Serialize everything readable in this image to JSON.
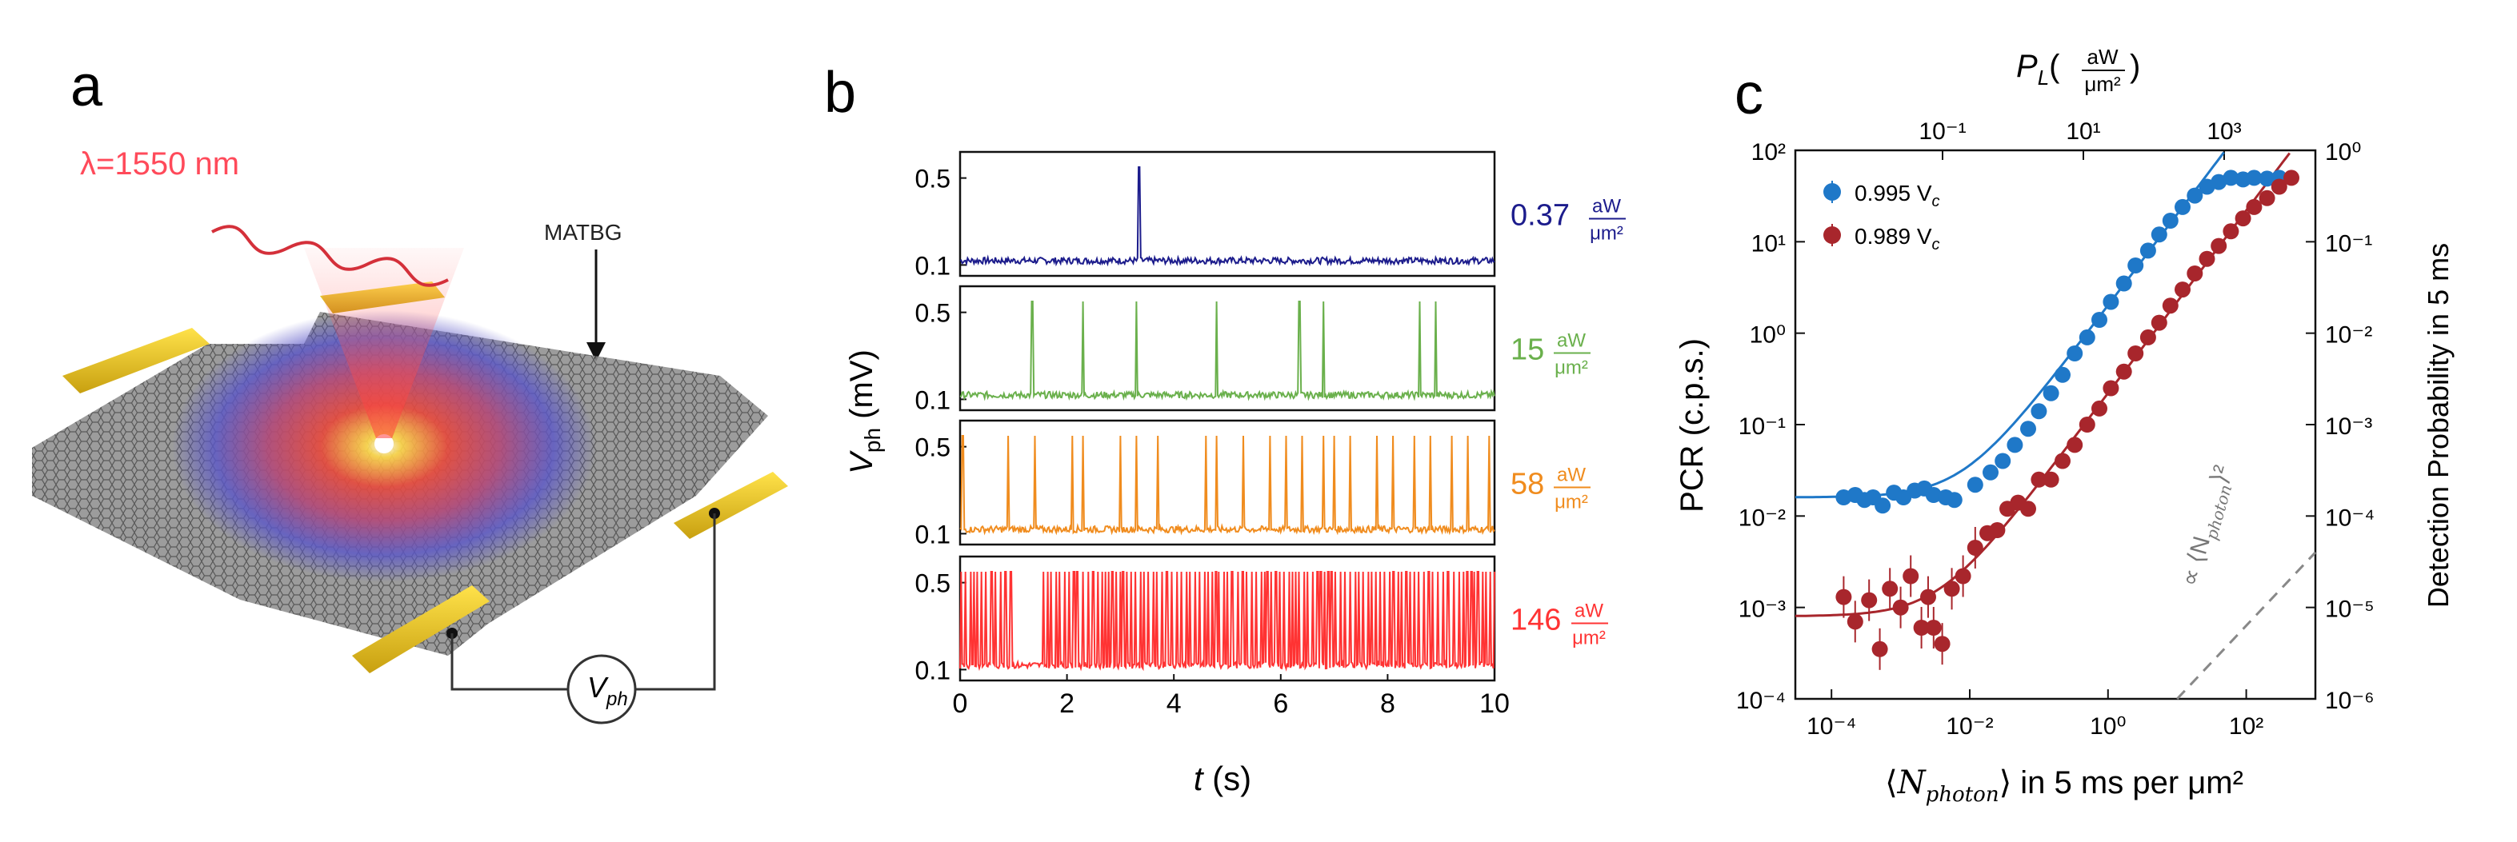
{
  "panels": {
    "a": {
      "letter": "a",
      "wavelength_label": "λ=1550 nm",
      "material_label": "MATBG",
      "voltmeter_label": "V",
      "voltmeter_sub": "ph"
    },
    "b": {
      "letter": "b",
      "ylabel_main": "V",
      "ylabel_sub": "ph",
      "ylabel_unit": " (mV)",
      "xlabel_main": "t",
      "xlabel_unit": " (s)"
    },
    "c": {
      "letter": "c",
      "top_axis_label_main": "P",
      "top_axis_label_sub": "L",
      "top_axis_unit_num": "aW",
      "top_axis_unit_den": "μm²",
      "left_ylabel": "PCR (c.p.s.)",
      "right_ylabel": "Detection Probability in 5 ms",
      "xlabel_pre": "⟨",
      "xlabel_var": "N",
      "xlabel_sub": "photon",
      "xlabel_post": "⟩ in 5 ms per μm²",
      "slope_annotation": "∝ ⟨N",
      "slope_annotation_sub": "photon",
      "slope_annotation_post": "⟩²"
    }
  },
  "chart_data": [
    {
      "type": "line",
      "panel": "b",
      "x_ticks": [
        0,
        2,
        4,
        6,
        8,
        10
      ],
      "xlim": [
        0,
        10
      ],
      "y_ticks": [
        0.1,
        0.5
      ],
      "ylim": [
        0.05,
        0.62
      ],
      "series": [
        {
          "name": "0.37",
          "unit_num": "aW",
          "unit_den": "μm²",
          "color": "#1c1c8c",
          "baseline": 0.12,
          "spikes": [
            3.35
          ]
        },
        {
          "name": "15",
          "unit_num": "aW",
          "unit_den": "μm²",
          "color": "#6ab04c",
          "baseline": 0.12,
          "spikes": [
            1.35,
            2.3,
            3.3,
            4.8,
            6.35,
            6.8,
            8.6,
            8.9
          ]
        },
        {
          "name": "58",
          "unit_num": "aW",
          "unit_den": "μm²",
          "color": "#f08c1e",
          "baseline": 0.12,
          "spikes": [
            0.05,
            0.9,
            1.4,
            2.1,
            2.3,
            3.0,
            3.3,
            3.7,
            4.6,
            4.8,
            5.3,
            5.8,
            6.1,
            6.4,
            6.8,
            7.0,
            7.3,
            7.8,
            8.1,
            8.5,
            8.8,
            9.2,
            9.5,
            9.9
          ]
        },
        {
          "name": "146",
          "unit_num": "aW",
          "unit_den": "μm²",
          "color": "#ff3333",
          "baseline": 0.12,
          "spikes_dense": true
        }
      ]
    },
    {
      "type": "scatter",
      "panel": "c",
      "x_scale": "log",
      "xlim": [
        3e-05,
        1000
      ],
      "x_ticks": [
        "10⁻⁴",
        "10⁻²",
        "10⁰",
        "10²"
      ],
      "y_scale": "log",
      "ylim": [
        0.0001,
        100
      ],
      "y_ticks": [
        "10⁻⁴",
        "10⁻³",
        "10⁻²",
        "10⁻¹",
        "10⁰",
        "10¹",
        "10²"
      ],
      "right_y_ticks": [
        "10⁻⁶",
        "10⁻⁵",
        "10⁻⁴",
        "10⁻³",
        "10⁻²",
        "10⁻¹",
        "10⁰"
      ],
      "top_x_ticks": [
        "10⁻¹",
        "10¹",
        "10³"
      ],
      "legend_position": "top-left",
      "series": [
        {
          "name": "0.995 V",
          "name_sub": "c",
          "color": "#1f78c8",
          "x": [
            0.00015,
            0.00022,
            0.0003,
            0.0004,
            0.00055,
            0.0008,
            0.0011,
            0.0016,
            0.0022,
            0.003,
            0.0045,
            0.006,
            0.012,
            0.02,
            0.03,
            0.045,
            0.07,
            0.1,
            0.15,
            0.22,
            0.33,
            0.5,
            0.75,
            1.1,
            1.7,
            2.5,
            3.8,
            5.5,
            8,
            12,
            18,
            27,
            40,
            60,
            90,
            130,
            200,
            300
          ],
          "y": [
            0.016,
            0.017,
            0.015,
            0.016,
            0.013,
            0.018,
            0.016,
            0.019,
            0.02,
            0.017,
            0.016,
            0.015,
            0.022,
            0.03,
            0.04,
            0.06,
            0.09,
            0.14,
            0.22,
            0.35,
            0.6,
            0.9,
            1.4,
            2.2,
            3.5,
            5.5,
            8,
            12,
            17,
            24,
            32,
            40,
            45,
            50,
            48,
            50,
            49,
            50
          ]
        },
        {
          "name": "0.989 V",
          "name_sub": "c",
          "color": "#a8262c",
          "x": [
            0.00015,
            0.00022,
            0.00035,
            0.0005,
            0.0007,
            0.001,
            0.0014,
            0.002,
            0.0025,
            0.003,
            0.004,
            0.0055,
            0.008,
            0.012,
            0.018,
            0.025,
            0.035,
            0.05,
            0.07,
            0.1,
            0.15,
            0.22,
            0.33,
            0.5,
            0.75,
            1.1,
            1.7,
            2.5,
            3.8,
            5.5,
            8,
            12,
            18,
            27,
            40,
            60,
            90,
            130,
            200,
            300,
            450
          ],
          "y": [
            0.0013,
            0.0007,
            0.0012,
            0.00035,
            0.0016,
            0.001,
            0.0022,
            0.0006,
            0.0013,
            0.0006,
            0.0004,
            0.0016,
            0.0022,
            0.0045,
            0.0065,
            0.007,
            0.012,
            0.014,
            0.012,
            0.025,
            0.025,
            0.04,
            0.06,
            0.1,
            0.15,
            0.25,
            0.38,
            0.6,
            0.9,
            1.3,
            2,
            3,
            4.5,
            6.5,
            9,
            13,
            18,
            24,
            30,
            40,
            50
          ]
        }
      ]
    }
  ]
}
